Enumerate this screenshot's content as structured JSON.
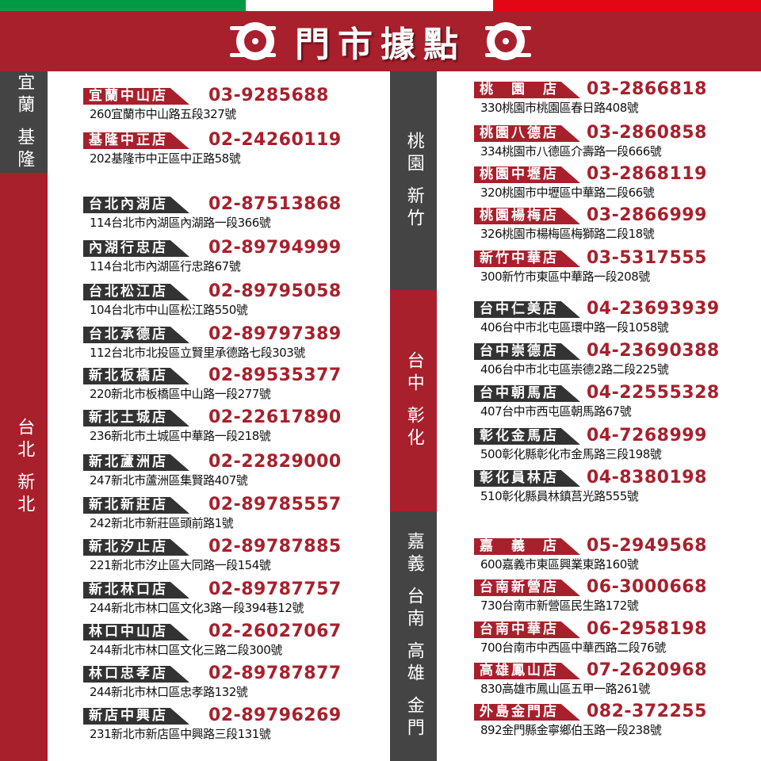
{
  "header": {
    "title": "門市據點",
    "flag_colors": [
      "#009a44",
      "#ffffff",
      "#e30613"
    ],
    "accent": "#a8202c",
    "dark": "#333333"
  },
  "left": {
    "sections": [
      {
        "region": "宜蘭 基隆",
        "color": "#444444"
      },
      {
        "region": "台北 新北",
        "color": "#a8202c"
      }
    ],
    "groups": [
      {
        "tag_color": "#a8202c",
        "stores": [
          {
            "name": "宜蘭中山店",
            "phone": "03-9285688",
            "address": "260宜蘭市中山路五段327號"
          },
          {
            "name": "基隆中正店",
            "phone": "02-24260119",
            "address": "202基隆市中正區中正路58號"
          }
        ]
      },
      {
        "tag_color": "#333333",
        "stores": [
          {
            "name": "台北內湖店",
            "phone": "02-87513868",
            "address": "114台北市內湖區內湖路一段366號"
          },
          {
            "name": "內湖行忠店",
            "phone": "02-89794999",
            "address": "114台北市內湖區行忠路67號"
          },
          {
            "name": "台北松江店",
            "phone": "02-89795058",
            "address": "104台北市中山區松江路550號"
          },
          {
            "name": "台北承德店",
            "phone": "02-89797389",
            "address": "112台北市北投區立賢里承德路七段303號"
          },
          {
            "name": "新北板橋店",
            "phone": "02-89535377",
            "address": "220新北市板橋區中山路一段277號"
          },
          {
            "name": "新北土城店",
            "phone": "02-22617890",
            "address": "236新北市土城區中華路一段218號"
          },
          {
            "name": "新北蘆洲店",
            "phone": "02-22829000",
            "address": "247新北市蘆洲區集賢路407號"
          },
          {
            "name": "新北新莊店",
            "phone": "02-89785557",
            "address": "242新北市新莊區頭前路1號"
          },
          {
            "name": "新北汐止店",
            "phone": "02-89787885",
            "address": "221新北市汐止區大同路一段154號"
          },
          {
            "name": "新北林口店",
            "phone": "02-89787757",
            "address": "244新北市林口區文化3路一段394巷12號"
          },
          {
            "name": "林口中山店",
            "phone": "02-26027067",
            "address": "244新北市林口區文化三路二段300號"
          },
          {
            "name": "林口忠孝店",
            "phone": "02-89787877",
            "address": "244新北市林口區忠孝路132號"
          },
          {
            "name": "新店中興店",
            "phone": "02-89796269",
            "address": "231新北市新店區中興路三段131號"
          }
        ]
      }
    ]
  },
  "right": {
    "sections": [
      {
        "region": "桃園 新竹",
        "color": "#444444"
      },
      {
        "region": "台中 彰化",
        "color": "#a8202c"
      },
      {
        "region": "嘉義 台南 高雄 金門",
        "color": "#444444"
      }
    ],
    "groups": [
      {
        "tag_color": "#a8202c",
        "stores": [
          {
            "name": "桃　園　店",
            "phone": "03-2866818",
            "address": "330桃園市桃園區春日路408號"
          },
          {
            "name": "桃園八德店",
            "phone": "03-2860858",
            "address": "334桃園市八德區介壽路一段666號"
          },
          {
            "name": "桃園中壢店",
            "phone": "03-2868119",
            "address": "320桃園市中壢區中華路二段66號"
          },
          {
            "name": "桃園楊梅店",
            "phone": "03-2866999",
            "address": "326桃園市楊梅區梅獅路二段18號"
          },
          {
            "name": "新竹中華店",
            "phone": "03-5317555",
            "address": "300新竹市東區中華路一段208號"
          }
        ]
      },
      {
        "tag_color": "#333333",
        "stores": [
          {
            "name": "台中仁美店",
            "phone": "04-23693939",
            "address": "406台中市北屯區環中路一段1058號"
          },
          {
            "name": "台中崇德店",
            "phone": "04-23690388",
            "address": "406台中市北屯區崇德2路二段225號"
          },
          {
            "name": "台中朝馬店",
            "phone": "04-22555328",
            "address": "407台中市西屯區朝馬路67號"
          },
          {
            "name": "彰化金馬店",
            "phone": "04-7268999",
            "address": "500彰化縣彰化市金馬路三段198號"
          },
          {
            "name": "彰化員林店",
            "phone": "04-8380198",
            "address": "510彰化縣員林鎮莒光路555號"
          }
        ]
      },
      {
        "tag_color": "#a8202c",
        "stores": [
          {
            "name": "嘉　義　店",
            "phone": "05-2949568",
            "address": "600嘉義市東區興業東路160號"
          },
          {
            "name": "台南新營店",
            "phone": "06-3000668",
            "address": "730台南市新營區民生路172號"
          },
          {
            "name": "台南中華店",
            "phone": "06-2958198",
            "address": "700台南市中西區中華西路二段76號"
          },
          {
            "name": "高雄鳳山店",
            "phone": "07-2620968",
            "address": "830高雄市鳳山區五甲一路261號"
          },
          {
            "name": "外島金門店",
            "phone": "082-372255",
            "address": "892金門縣金寧鄉伯玉路一段238號"
          }
        ]
      }
    ]
  }
}
